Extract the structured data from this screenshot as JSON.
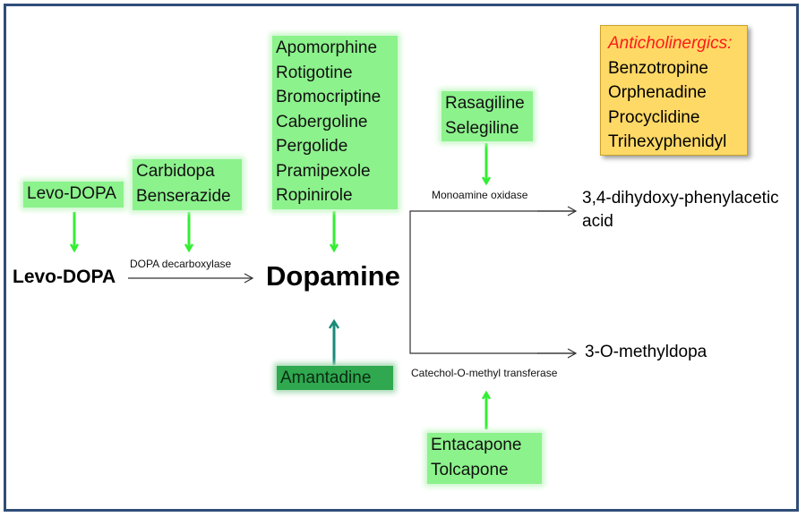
{
  "levodopa_box": {
    "label": "Levo-DOPA"
  },
  "decarb_inhibitors": {
    "items": [
      "Carbidopa",
      "Benserazide"
    ]
  },
  "dopamine_agonists": {
    "items": [
      "Apomorphine",
      "Rotigotine",
      "Bromocriptine",
      "Cabergoline",
      "Pergolide",
      "Pramipexole",
      "Ropinirole"
    ]
  },
  "mao_inhibitors": {
    "items": [
      "Rasagiline",
      "Selegiline"
    ]
  },
  "comt_inhibitors": {
    "items": [
      "Entacapone",
      "Tolcapone"
    ]
  },
  "amantadine": {
    "label": "Amantadine"
  },
  "anticholinergics": {
    "title": "Anticholinergics:",
    "items": [
      "Benzotropine",
      "Orphenadine",
      "Procyclidine",
      "Trihexyphenidyl"
    ]
  },
  "pathway": {
    "substrate": "Levo-DOPA",
    "enzyme_decarboxylase": "DOPA decarboxylase",
    "dopamine": "Dopamine",
    "enzyme_mao": "Monoamine oxidase",
    "product_mao_line1": "3,4-dihydoxy-phenylacetic",
    "product_mao_line2": "acid",
    "enzyme_comt": "Catechol-O-methyl transferase",
    "product_comt": "3-O-methyldopa"
  },
  "colors": {
    "frame": "#2f4d78",
    "drug_box": "#8cf28c",
    "amantadine_box": "#2fa84f",
    "anticholinergic_box": "#ffd966",
    "anticholinergic_title": "#ff1a1a",
    "green_arrow": "#33ee33",
    "teal_arrow": "#1a8a7a"
  }
}
